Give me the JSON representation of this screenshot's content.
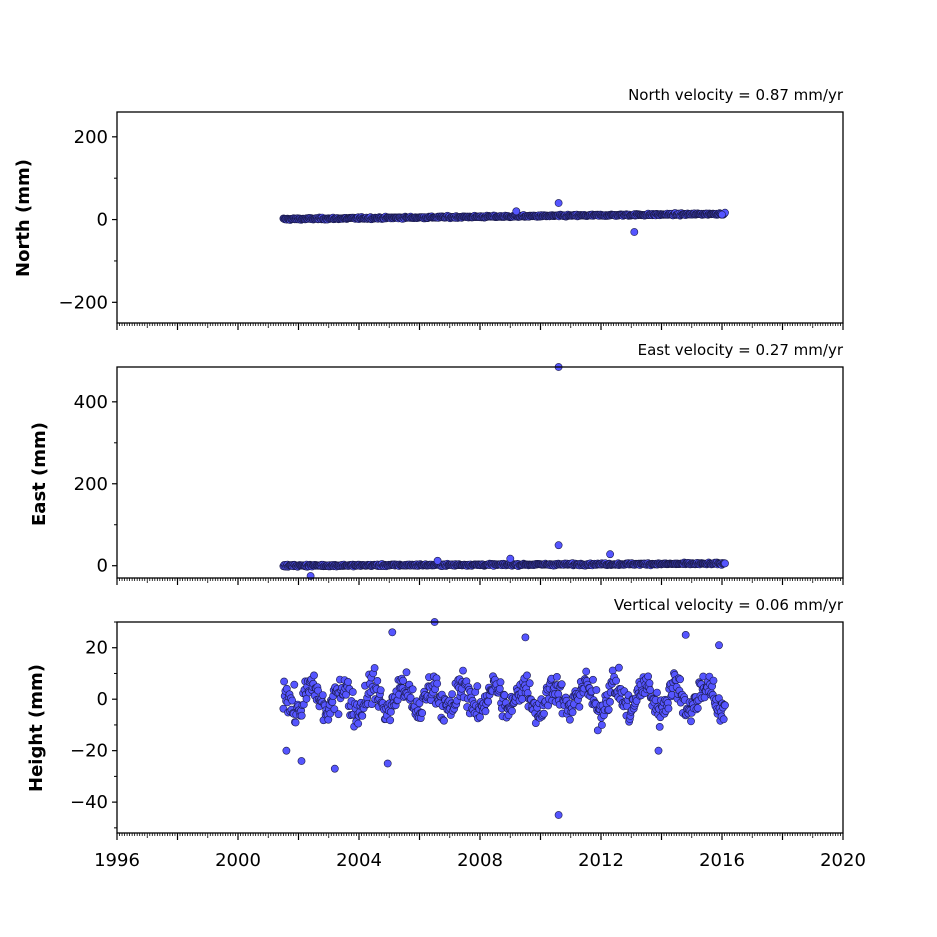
{
  "chart_data": [
    {
      "type": "scatter",
      "title": "North velocity = 0.87 mm/yr",
      "ylabel": "North (mm)",
      "xlim": [
        1996,
        2020
      ],
      "ylim": [
        -250,
        260
      ],
      "yticks": [
        -200,
        0,
        200
      ],
      "ytick_labels": [
        "−200",
        "0",
        "200"
      ],
      "x_tick_labels_shown": false,
      "series": [
        {
          "band": {
            "x_start": 2001.5,
            "x_end": 2016.1,
            "center_start": 1,
            "center_end": 14,
            "spread": 3
          },
          "outliers": [
            {
              "x": 2010.6,
              "y": 40
            },
            {
              "x": 2013.1,
              "y": -30
            },
            {
              "x": 2009.2,
              "y": 20
            },
            {
              "x": 2016.0,
              "y": 12
            }
          ]
        }
      ]
    },
    {
      "type": "scatter",
      "title": "East velocity = 0.27 mm/yr",
      "ylabel": "East (mm)",
      "xlim": [
        1996,
        2020
      ],
      "ylim": [
        -30,
        485
      ],
      "yticks": [
        0,
        200,
        400
      ],
      "ytick_labels": [
        "0",
        "200",
        "400"
      ],
      "x_tick_labels_shown": false,
      "series": [
        {
          "band": {
            "x_start": 2001.5,
            "x_end": 2016.1,
            "center_start": 0,
            "center_end": 5,
            "spread": 3
          },
          "outliers": [
            {
              "x": 2010.6,
              "y": 485
            },
            {
              "x": 2010.6,
              "y": 50
            },
            {
              "x": 2012.3,
              "y": 28
            },
            {
              "x": 2009.0,
              "y": 17
            },
            {
              "x": 2002.4,
              "y": -25
            },
            {
              "x": 2006.6,
              "y": 12
            }
          ]
        }
      ]
    },
    {
      "type": "scatter",
      "title": "Vertical velocity = 0.06 mm/yr",
      "ylabel": "Height (mm)",
      "xlim": [
        1996,
        2020
      ],
      "ylim": [
        -52,
        30
      ],
      "yticks": [
        -40,
        -20,
        0,
        20
      ],
      "ytick_labels": [
        "−40",
        "−20",
        "0",
        "20"
      ],
      "xticks": [
        1996,
        2000,
        2004,
        2008,
        2012,
        2016,
        2020
      ],
      "xtick_labels": [
        "1996",
        "2000",
        "2004",
        "2008",
        "2012",
        "2016",
        "2020"
      ],
      "x_tick_labels_shown": true,
      "series": [
        {
          "band": {
            "x_start": 2001.5,
            "x_end": 2016.1,
            "center_start": 0,
            "center_end": 1,
            "spread": 8,
            "seasonal_amplitude": 5
          },
          "outliers": [
            {
              "x": 2010.6,
              "y": -45
            },
            {
              "x": 2006.5,
              "y": 30
            },
            {
              "x": 2005.1,
              "y": 26
            },
            {
              "x": 2009.5,
              "y": 24
            },
            {
              "x": 2014.8,
              "y": 25
            },
            {
              "x": 2003.2,
              "y": -27
            },
            {
              "x": 2002.1,
              "y": -24
            },
            {
              "x": 2001.6,
              "y": -20
            },
            {
              "x": 2004.95,
              "y": -25
            },
            {
              "x": 2013.9,
              "y": -20
            },
            {
              "x": 2015.9,
              "y": 21
            }
          ]
        }
      ]
    }
  ],
  "colors": {
    "marker_fill": "#5555ff",
    "marker_edge": "#1a1a4a",
    "axes": "#000000"
  }
}
